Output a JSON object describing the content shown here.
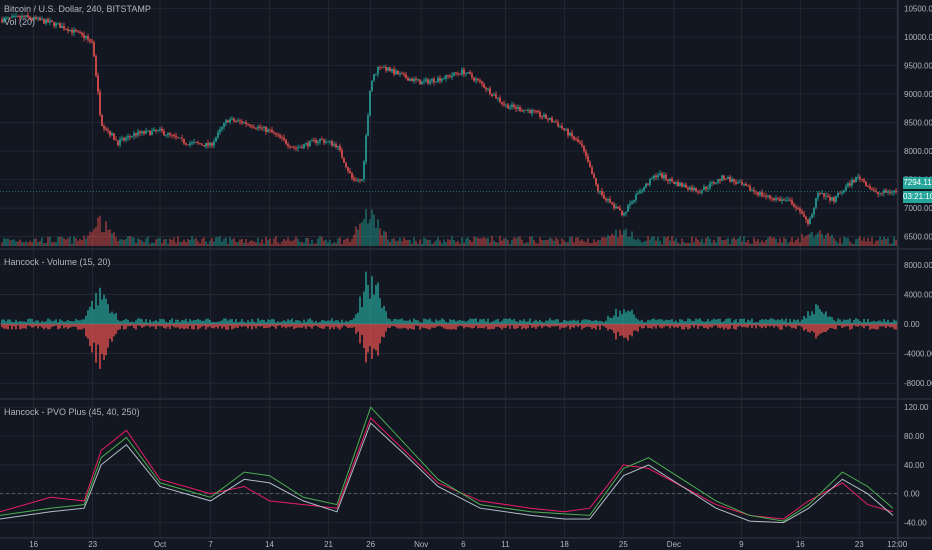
{
  "header": {
    "symbol_title": "Bitcoin / U.S. Dollar, 240, BITSTAMP",
    "volume_label": "Vol (20)"
  },
  "panes": {
    "volume_title": "Hancock - Volume (15, 20)",
    "pvo_title": "Hancock - PVO Plus (45, 40, 250)"
  },
  "price_tags": {
    "last_price": "7294.11",
    "countdown": "03:21:10"
  },
  "colors": {
    "background": "#131722",
    "grid": "#2a2e39",
    "up": "#26a69a",
    "down": "#ef5350",
    "pvo_line_1": "#e91e63",
    "pvo_line_2": "#4caf50",
    "pvo_line_3": "#b0bec5"
  },
  "chart_data": [
    {
      "type": "candlestick",
      "pane": "price",
      "y_ticks": [
        "10500.00",
        "10000.00",
        "9500.00",
        "9000.00",
        "8500.00",
        "8000.00",
        "7500.00",
        "7000.00",
        "6500.00"
      ],
      "ylim": [
        6300,
        10650
      ],
      "x_ticks": [
        "16",
        "23",
        "Oct",
        "7",
        "14",
        "21",
        "26",
        "Nov",
        "6",
        "11",
        "18",
        "25",
        "Dec",
        "9",
        "16",
        "23",
        "12:00"
      ],
      "x_tick_dates": [
        "Sep 16",
        "Sep 23",
        "Oct 1",
        "Oct 7",
        "Oct 14",
        "Oct 21",
        "Oct 26",
        "Nov 1",
        "Nov 6",
        "Nov 11",
        "Nov 18",
        "Nov 25",
        "Dec 1",
        "Dec 9",
        "Dec 16",
        "Dec 23",
        "Dec 27 12:00"
      ],
      "close_path": [
        [
          "Sep 12",
          10300
        ],
        [
          "Sep 15",
          10350
        ],
        [
          "Sep 18",
          10250
        ],
        [
          "Sep 20",
          10150
        ],
        [
          "Sep 22",
          10000
        ],
        [
          "Sep 23",
          9900
        ],
        [
          "Sep 24",
          8500
        ],
        [
          "Sep 26",
          8150
        ],
        [
          "Sep 28",
          8300
        ],
        [
          "Oct 1",
          8350
        ],
        [
          "Oct 4",
          8150
        ],
        [
          "Oct 7",
          8100
        ],
        [
          "Oct 9",
          8550
        ],
        [
          "Oct 11",
          8500
        ],
        [
          "Oct 14",
          8350
        ],
        [
          "Oct 17",
          8050
        ],
        [
          "Oct 20",
          8200
        ],
        [
          "Oct 22",
          8100
        ],
        [
          "Oct 24",
          7450
        ],
        [
          "Oct 25",
          7500
        ],
        [
          "Oct 26",
          9200
        ],
        [
          "Oct 27",
          9500
        ],
        [
          "Oct 30",
          9300
        ],
        [
          "Nov 1",
          9200
        ],
        [
          "Nov 4",
          9300
        ],
        [
          "Nov 6",
          9400
        ],
        [
          "Nov 8",
          9200
        ],
        [
          "Nov 11",
          8800
        ],
        [
          "Nov 14",
          8700
        ],
        [
          "Nov 17",
          8500
        ],
        [
          "Nov 20",
          8100
        ],
        [
          "Nov 22",
          7300
        ],
        [
          "Nov 24",
          7000
        ],
        [
          "Nov 25",
          6900
        ],
        [
          "Nov 27",
          7300
        ],
        [
          "Nov 29",
          7600
        ],
        [
          "Dec 1",
          7450
        ],
        [
          "Dec 4",
          7300
        ],
        [
          "Dec 7",
          7550
        ],
        [
          "Dec 9",
          7400
        ],
        [
          "Dec 12",
          7200
        ],
        [
          "Dec 15",
          7100
        ],
        [
          "Dec 17",
          6700
        ],
        [
          "Dec 18",
          7250
        ],
        [
          "Dec 20",
          7150
        ],
        [
          "Dec 22",
          7450
        ],
        [
          "Dec 23",
          7550
        ],
        [
          "Dec 25",
          7250
        ],
        [
          "Dec 27",
          7294.11
        ]
      ],
      "last_price": 7294.11
    },
    {
      "type": "bar",
      "pane": "volume",
      "y_ticks": [
        "8000.00",
        "4000.00",
        "0.00",
        "-4000.00",
        "-8000.00"
      ],
      "ylim": [
        -10000,
        10000
      ],
      "spikes": [
        {
          "date": "Sep 24",
          "up": 6000,
          "down": -7500
        },
        {
          "date": "Oct 26",
          "up": 9000,
          "down": -6500
        },
        {
          "date": "Nov 25",
          "up": 3000,
          "down": -3000
        },
        {
          "date": "Dec 18",
          "up": 2500,
          "down": -1500
        }
      ],
      "baseline_amplitude": 600
    },
    {
      "type": "line",
      "pane": "pvo",
      "y_ticks": [
        "120.00",
        "80.00",
        "40.00",
        "0.00",
        "-40.00"
      ],
      "ylim": [
        -60,
        130
      ],
      "zero_line": 0,
      "x": [
        "Sep 12",
        "Sep 18",
        "Sep 22",
        "Sep 24",
        "Sep 27",
        "Oct 1",
        "Oct 7",
        "Oct 11",
        "Oct 14",
        "Oct 18",
        "Oct 22",
        "Oct 26",
        "Oct 30",
        "Nov 3",
        "Nov 8",
        "Nov 14",
        "Nov 18",
        "Nov 21",
        "Nov 25",
        "Nov 28",
        "Dec 2",
        "Dec 6",
        "Dec 10",
        "Dec 14",
        "Dec 17",
        "Dec 21",
        "Dec 24",
        "Dec 27"
      ],
      "series": [
        {
          "values": [
            -25,
            -5,
            -10,
            60,
            88,
            20,
            0,
            10,
            -10,
            -15,
            -20,
            105,
            60,
            15,
            -10,
            -20,
            -25,
            -20,
            40,
            35,
            10,
            -15,
            -30,
            -35,
            -10,
            15,
            -15,
            -25
          ]
        },
        {
          "values": [
            -30,
            -20,
            -15,
            50,
            78,
            15,
            -5,
            30,
            25,
            -5,
            -15,
            120,
            70,
            20,
            -15,
            -25,
            -28,
            -30,
            35,
            50,
            20,
            -10,
            -30,
            -38,
            -15,
            30,
            10,
            -20
          ]
        },
        {
          "values": [
            -35,
            -25,
            -20,
            40,
            68,
            10,
            -10,
            20,
            15,
            -10,
            -25,
            98,
            55,
            10,
            -20,
            -30,
            -35,
            -35,
            25,
            40,
            10,
            -20,
            -38,
            -40,
            -20,
            20,
            0,
            -30
          ]
        }
      ]
    }
  ]
}
